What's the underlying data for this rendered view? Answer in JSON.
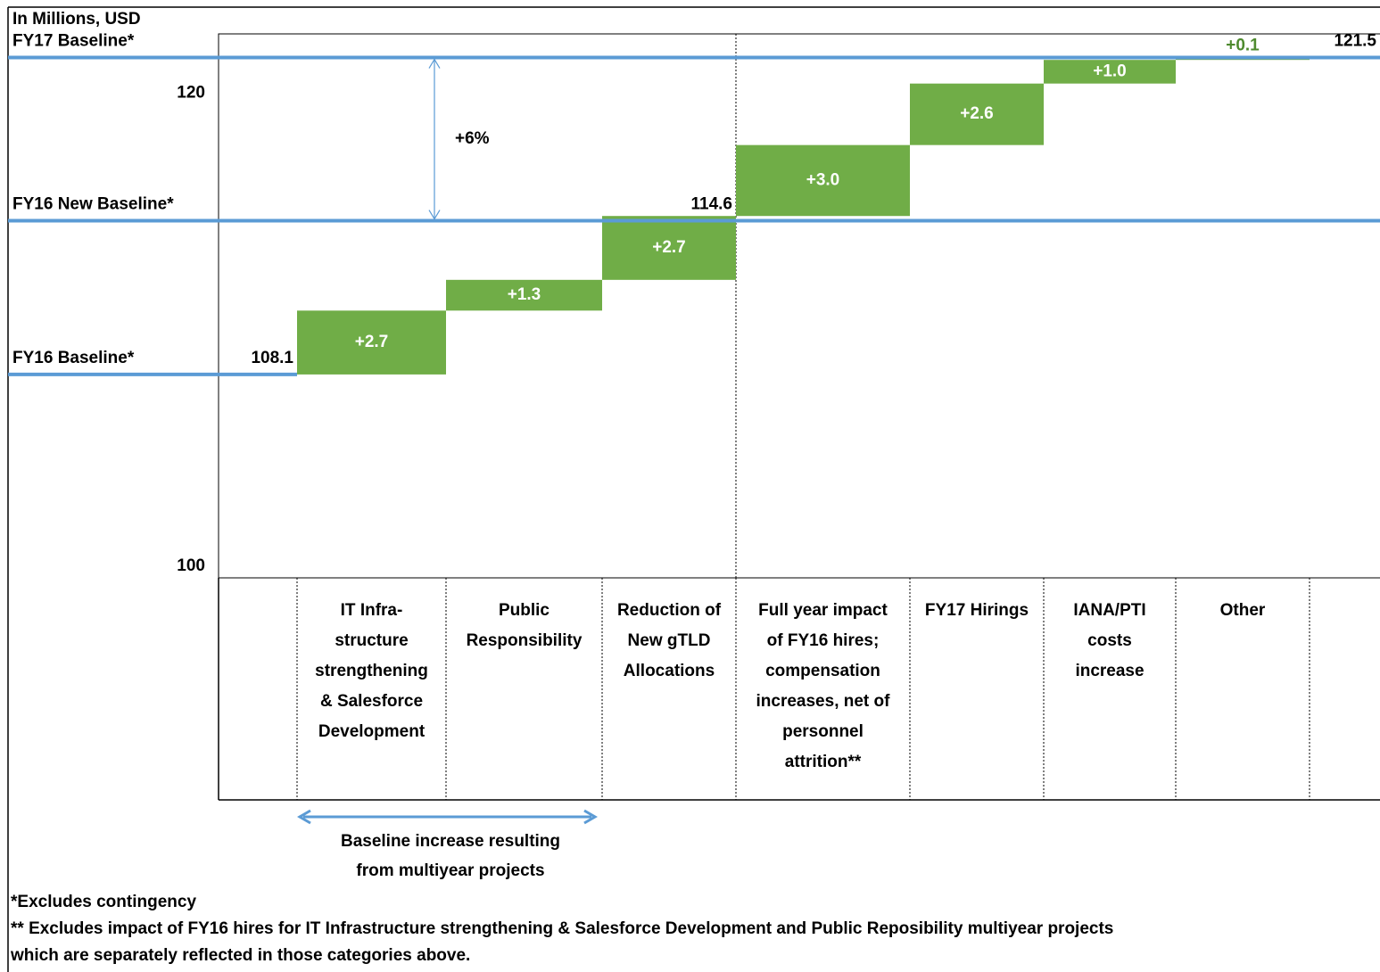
{
  "chart_data": {
    "type": "waterfall",
    "y_label": "In Millions, USD",
    "ylim": [
      99.5,
      122.5
    ],
    "yticks": [
      100,
      120
    ],
    "categories": [
      "IT Infra-\nstructure\nstrengthening\n& Salesforce\nDevelopment",
      "Public\nResponsibility",
      "Reduction of\nNew gTLD\nAllocations",
      "Full year impact\nof FY16 hires;\ncompensation\nincreases, net of\npersonnel\nattrition**",
      "FY17 Hirings",
      "IANA/PTI\ncosts\nincrease",
      "Other"
    ],
    "values": [
      2.7,
      1.3,
      2.7,
      3.0,
      2.6,
      1.0,
      0.1
    ],
    "value_labels": [
      "+2.7",
      "+1.3",
      "+2.7",
      "+3.0",
      "+2.6",
      "+1.0",
      "+0.1"
    ],
    "color": "#70ad47",
    "baselines": [
      {
        "label": "FY16 Baseline*",
        "value": 108.1
      },
      {
        "label": "FY16 New Baseline*",
        "value": 114.6
      },
      {
        "label": "FY17 Baseline*",
        "value": 121.5
      }
    ],
    "baseline_color": "#5b9bd5",
    "change_label": "+6%",
    "bracket_label": "Baseline increase resulting\nfrom multiyear projects",
    "footnotes": [
      "*Excludes contingency",
      "** Excludes impact of FY16 hires for IT Infrastructure strengthening & Salesforce Development and Public Reposibility multiyear projects\nwhich are separately reflected in those categories above."
    ]
  }
}
